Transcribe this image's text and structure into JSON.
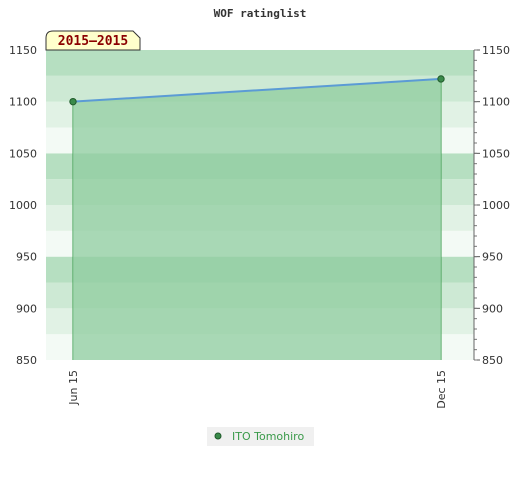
{
  "chart_data": {
    "type": "area",
    "title": "WOF ratinglist",
    "period_label": "2015–2015",
    "categories": [
      "Jun 15",
      "Dec 15"
    ],
    "series": [
      {
        "name": "ITO Tomohiro",
        "values": [
          1100,
          1122
        ]
      }
    ],
    "ylim": [
      850,
      1150
    ],
    "yticks": [
      850,
      900,
      950,
      1000,
      1050,
      1100,
      1150
    ],
    "ytick_labels": [
      "850",
      "900",
      "950",
      "1000",
      "1050",
      "1100",
      "1150"
    ],
    "grid": true,
    "legend_position": "bottom-center",
    "colors": {
      "area_fill": "#8fcc9f",
      "line": "#5b9bd5",
      "marker": "#3a8a4a",
      "legend_text": "#3a9a4a",
      "badge_bg": "#ffffcc",
      "badge_text": "#8b0000"
    }
  }
}
